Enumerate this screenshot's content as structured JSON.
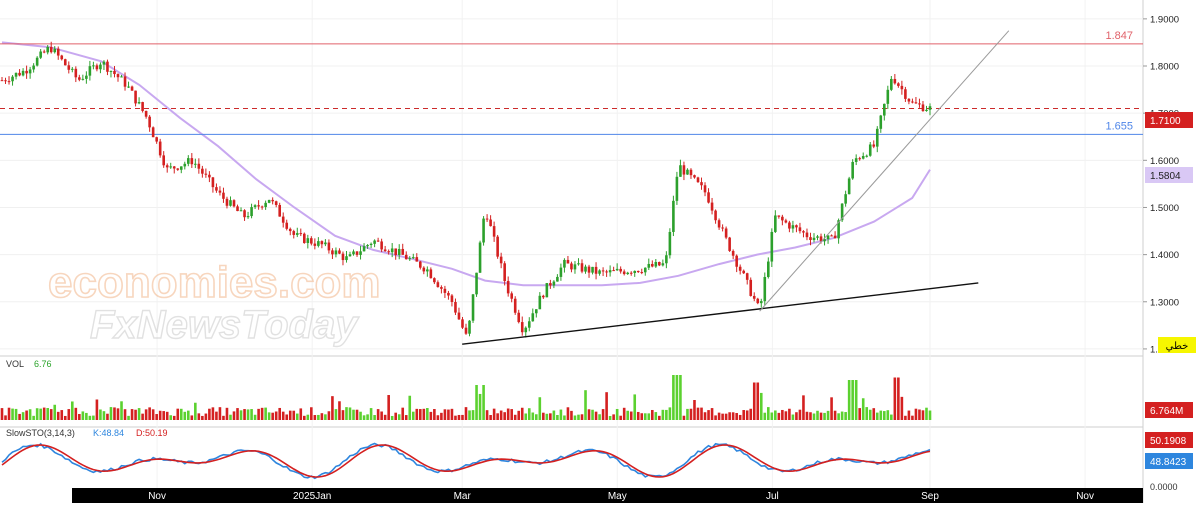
{
  "chart_data": {
    "type": "candlestick",
    "symbol_badge": "خطي",
    "x_ticks": [
      "Nov",
      "2025Jan",
      "Mar",
      "May",
      "Jul",
      "Sep",
      "Nov"
    ],
    "price_axis": {
      "ticks": [
        "1.9000",
        "1.8000",
        "1.7000",
        "1.6000",
        "1.5000",
        "1.4000",
        "1.3000",
        "1.2000"
      ],
      "ylim": [
        1.185,
        1.94
      ]
    },
    "last_price": "1.7100",
    "ma_value": "1.5804",
    "horizontal_lines": [
      {
        "label": "1.847",
        "value": 1.847,
        "color": "#e0626a",
        "style": "solid"
      },
      {
        "label": "1.655",
        "value": 1.655,
        "color": "#4f86e8",
        "style": "solid"
      },
      {
        "value": 1.71,
        "color": "#cc2a2a",
        "style": "dashed"
      }
    ],
    "trendlines": [
      {
        "from": [
          "2025-03-01",
          1.21
        ],
        "to": [
          "2025-09-20",
          1.34
        ],
        "color": "#111111"
      },
      {
        "from": [
          "2025-06-26",
          1.28
        ],
        "to": [
          "2025-10-02",
          1.875
        ],
        "color": "#9a9a9a"
      }
    ],
    "moving_average_points": [
      [
        "2024-09-01",
        1.85
      ],
      [
        "2024-09-20",
        1.84
      ],
      [
        "2024-10-10",
        1.81
      ],
      [
        "2024-10-25",
        1.76
      ],
      [
        "2024-11-10",
        1.69
      ],
      [
        "2024-11-25",
        1.63
      ],
      [
        "2024-12-10",
        1.56
      ],
      [
        "2024-12-25",
        1.5
      ],
      [
        "2025-01-10",
        1.44
      ],
      [
        "2025-01-25",
        1.41
      ],
      [
        "2025-02-10",
        1.39
      ],
      [
        "2025-02-25",
        1.37
      ],
      [
        "2025-03-10",
        1.345
      ],
      [
        "2025-03-25",
        1.335
      ],
      [
        "2025-04-10",
        1.335
      ],
      [
        "2025-04-25",
        1.335
      ],
      [
        "2025-05-10",
        1.34
      ],
      [
        "2025-05-25",
        1.355
      ],
      [
        "2025-06-10",
        1.38
      ],
      [
        "2025-06-25",
        1.4
      ],
      [
        "2025-07-10",
        1.415
      ],
      [
        "2025-07-25",
        1.435
      ],
      [
        "2025-08-10",
        1.47
      ],
      [
        "2025-08-25",
        1.52
      ],
      [
        "2025-09-01",
        1.5804
      ]
    ],
    "price_path": [
      [
        "2024-09-01",
        1.77
      ],
      [
        "2024-09-10",
        1.79
      ],
      [
        "2024-09-20",
        1.84
      ],
      [
        "2024-10-01",
        1.77
      ],
      [
        "2024-10-10",
        1.81
      ],
      [
        "2024-10-20",
        1.76
      ],
      [
        "2024-10-28",
        1.69
      ],
      [
        "2024-11-05",
        1.58
      ],
      [
        "2024-11-15",
        1.6
      ],
      [
        "2024-11-25",
        1.53
      ],
      [
        "2024-12-05",
        1.48
      ],
      [
        "2024-12-15",
        1.52
      ],
      [
        "2024-12-25",
        1.44
      ],
      [
        "2025-01-05",
        1.42
      ],
      [
        "2025-01-15",
        1.39
      ],
      [
        "2025-01-25",
        1.43
      ],
      [
        "2025-02-05",
        1.4
      ],
      [
        "2025-02-15",
        1.37
      ],
      [
        "2025-02-25",
        1.3
      ],
      [
        "2025-03-03",
        1.22
      ],
      [
        "2025-03-10",
        1.5
      ],
      [
        "2025-03-18",
        1.34
      ],
      [
        "2025-03-25",
        1.24
      ],
      [
        "2025-04-02",
        1.32
      ],
      [
        "2025-04-10",
        1.38
      ],
      [
        "2025-04-25",
        1.36
      ],
      [
        "2025-05-10",
        1.37
      ],
      [
        "2025-05-20",
        1.38
      ],
      [
        "2025-05-25",
        1.59
      ],
      [
        "2025-06-05",
        1.53
      ],
      [
        "2025-06-12",
        1.44
      ],
      [
        "2025-06-20",
        1.35
      ],
      [
        "2025-06-26",
        1.28
      ],
      [
        "2025-07-02",
        1.48
      ],
      [
        "2025-07-15",
        1.44
      ],
      [
        "2025-07-25",
        1.43
      ],
      [
        "2025-08-02",
        1.6
      ],
      [
        "2025-08-10",
        1.63
      ],
      [
        "2025-08-17",
        1.78
      ],
      [
        "2025-08-25",
        1.72
      ],
      [
        "2025-09-01",
        1.71
      ]
    ],
    "volume": {
      "label": "VOL",
      "value_label": "6.76",
      "last_label": "6.764M",
      "bar_count": 265,
      "spikes": [
        [
          "2025-03-08",
          0.7
        ],
        [
          "2025-05-25",
          0.9
        ],
        [
          "2025-06-25",
          0.75
        ],
        [
          "2025-08-02",
          0.8
        ],
        [
          "2025-08-20",
          0.85
        ]
      ]
    },
    "stochastic": {
      "label": "SlowSTO(3,14,3)",
      "k_label": "K:48.84",
      "d_label": "D:50.19",
      "k_value": "48.8423",
      "d_value": "50.1908",
      "axis_label": "0.0000",
      "k_color": "#2e86de",
      "d_color": "#d42020"
    },
    "watermark": [
      "economies.com",
      "FxNewsToday"
    ]
  }
}
